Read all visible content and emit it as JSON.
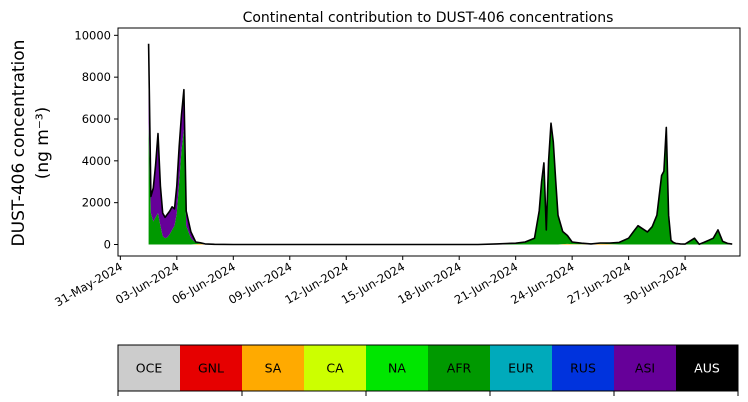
{
  "chart_data": {
    "type": "area",
    "stacked": true,
    "title": "Continental contribution to DUST-406 concentrations",
    "ylabel": "DUST-406 concentration",
    "ylabel_unit": "(ng m⁻³)",
    "xlabel": "",
    "xlim": [
      "2024-05-30T21:00",
      "2024-07-02T22:00"
    ],
    "ylim": [
      -550,
      10350
    ],
    "yticks": [
      0,
      2000,
      4000,
      6000,
      8000,
      10000
    ],
    "yticklabels": [
      "0",
      "2000",
      "4000",
      "6000",
      "8000",
      "10000"
    ],
    "xticks": [
      "2024-05-31",
      "2024-06-03",
      "2024-06-06",
      "2024-06-09",
      "2024-06-12",
      "2024-06-15",
      "2024-06-18",
      "2024-06-21",
      "2024-06-24",
      "2024-06-27",
      "2024-06-30"
    ],
    "xticklabels": [
      "31-May-2024",
      "03-Jun-2024",
      "06-Jun-2024",
      "09-Jun-2024",
      "12-Jun-2024",
      "15-Jun-2024",
      "18-Jun-2024",
      "21-Jun-2024",
      "24-Jun-2024",
      "27-Jun-2024",
      "30-Jun-2024"
    ],
    "grid": false,
    "x": [
      "2024-06-01T12:00",
      "2024-06-01T15:00",
      "2024-06-01T18:00",
      "2024-06-01T21:00",
      "2024-06-02T00:00",
      "2024-06-02T03:00",
      "2024-06-02T06:00",
      "2024-06-02T09:00",
      "2024-06-02T12:00",
      "2024-06-02T15:00",
      "2024-06-02T18:00",
      "2024-06-02T21:00",
      "2024-06-03T00:00",
      "2024-06-03T03:00",
      "2024-06-03T06:00",
      "2024-06-03T09:00",
      "2024-06-03T12:00",
      "2024-06-03T18:00",
      "2024-06-04T00:00",
      "2024-06-04T06:00",
      "2024-06-04T12:00",
      "2024-06-05T00:00",
      "2024-06-06T00:00",
      "2024-06-08T00:00",
      "2024-06-11T00:00",
      "2024-06-14T00:00",
      "2024-06-17T00:00",
      "2024-06-19T00:00",
      "2024-06-20T00:00",
      "2024-06-21T00:00",
      "2024-06-21T12:00",
      "2024-06-22T00:00",
      "2024-06-22T06:00",
      "2024-06-22T09:00",
      "2024-06-22T12:00",
      "2024-06-22T15:00",
      "2024-06-22T18:00",
      "2024-06-22T21:00",
      "2024-06-23T00:00",
      "2024-06-23T03:00",
      "2024-06-23T06:00",
      "2024-06-23T12:00",
      "2024-06-23T18:00",
      "2024-06-24T00:00",
      "2024-06-24T12:00",
      "2024-06-25T00:00",
      "2024-06-25T12:00",
      "2024-06-26T00:00",
      "2024-06-26T12:00",
      "2024-06-27T00:00",
      "2024-06-27T06:00",
      "2024-06-27T12:00",
      "2024-06-27T18:00",
      "2024-06-28T00:00",
      "2024-06-28T06:00",
      "2024-06-28T12:00",
      "2024-06-28T18:00",
      "2024-06-28T21:00",
      "2024-06-29T00:00",
      "2024-06-29T03:00",
      "2024-06-29T06:00",
      "2024-06-29T09:00",
      "2024-06-29T12:00",
      "2024-06-29T18:00",
      "2024-06-30T00:00",
      "2024-06-30T12:00",
      "2024-06-30T18:00",
      "2024-07-01T00:00",
      "2024-07-01T06:00",
      "2024-07-01T12:00",
      "2024-07-01T18:00",
      "2024-07-02T00:00",
      "2024-07-02T06:00",
      "2024-07-02T12:00"
    ],
    "series": [
      {
        "name": "OCE",
        "color": "#cccccc",
        "values": [
          0,
          0,
          0,
          0,
          0,
          0,
          0,
          0,
          0,
          0,
          0,
          0,
          0,
          0,
          0,
          0,
          0,
          0,
          0,
          0,
          0,
          0,
          0,
          0,
          0,
          0,
          0,
          0,
          0,
          0,
          0,
          0,
          0,
          0,
          0,
          0,
          0,
          0,
          0,
          0,
          0,
          0,
          0,
          0,
          0,
          0,
          0,
          0,
          0,
          0,
          0,
          0,
          0,
          0,
          0,
          0,
          0,
          0,
          0,
          0,
          0,
          0,
          0,
          0,
          0,
          0,
          0,
          0,
          0,
          0,
          0,
          0,
          0,
          0
        ]
      },
      {
        "name": "GNL",
        "color": "#e60000",
        "values": [
          0,
          0,
          0,
          0,
          0,
          0,
          0,
          0,
          0,
          0,
          0,
          0,
          0,
          0,
          0,
          0,
          0,
          0,
          0,
          0,
          0,
          0,
          0,
          0,
          0,
          0,
          0,
          0,
          0,
          0,
          0,
          0,
          0,
          0,
          0,
          0,
          0,
          0,
          0,
          0,
          0,
          0,
          0,
          0,
          0,
          0,
          0,
          0,
          0,
          0,
          0,
          0,
          0,
          0,
          0,
          0,
          0,
          0,
          0,
          0,
          0,
          0,
          0,
          0,
          0,
          0,
          0,
          0,
          0,
          0,
          0,
          0,
          0,
          0
        ]
      },
      {
        "name": "SA",
        "color": "#ffaa00",
        "values": [
          0,
          0,
          0,
          0,
          0,
          0,
          0,
          0,
          0,
          0,
          0,
          0,
          0,
          0,
          0,
          0,
          0,
          0,
          20,
          40,
          20,
          10,
          0,
          0,
          0,
          0,
          0,
          0,
          0,
          0,
          0,
          0,
          0,
          0,
          0,
          0,
          0,
          0,
          0,
          0,
          0,
          20,
          30,
          20,
          10,
          30,
          40,
          20,
          0,
          0,
          0,
          0,
          0,
          0,
          0,
          0,
          0,
          0,
          0,
          0,
          0,
          0,
          0,
          0,
          0,
          0,
          0,
          0,
          0,
          0,
          0,
          0,
          0,
          0
        ]
      },
      {
        "name": "CA",
        "color": "#ccff00",
        "values": [
          0,
          0,
          0,
          0,
          0,
          0,
          0,
          0,
          0,
          0,
          0,
          0,
          0,
          0,
          0,
          0,
          0,
          0,
          0,
          0,
          0,
          0,
          0,
          0,
          0,
          0,
          0,
          0,
          0,
          0,
          0,
          0,
          0,
          0,
          0,
          0,
          0,
          0,
          0,
          0,
          0,
          0,
          0,
          0,
          0,
          0,
          0,
          0,
          0,
          0,
          0,
          0,
          0,
          0,
          0,
          0,
          0,
          0,
          0,
          0,
          0,
          0,
          0,
          0,
          0,
          0,
          0,
          0,
          0,
          0,
          0,
          0,
          0,
          0
        ]
      },
      {
        "name": "NA",
        "color": "#00e600",
        "values": [
          0,
          0,
          0,
          0,
          0,
          0,
          0,
          0,
          0,
          0,
          0,
          0,
          0,
          0,
          0,
          0,
          0,
          0,
          0,
          0,
          0,
          0,
          0,
          0,
          0,
          0,
          0,
          0,
          0,
          0,
          0,
          0,
          0,
          0,
          0,
          0,
          0,
          0,
          0,
          0,
          0,
          0,
          0,
          0,
          0,
          0,
          0,
          0,
          0,
          0,
          0,
          0,
          0,
          0,
          0,
          0,
          0,
          0,
          0,
          0,
          0,
          0,
          0,
          0,
          0,
          0,
          0,
          0,
          0,
          0,
          0,
          0,
          0,
          0
        ]
      },
      {
        "name": "AFR",
        "color": "#009900",
        "values": [
          5800,
          1500,
          1100,
          1300,
          1500,
          900,
          400,
          300,
          350,
          500,
          700,
          900,
          1500,
          3000,
          4500,
          5500,
          900,
          300,
          60,
          20,
          0,
          0,
          0,
          0,
          0,
          0,
          0,
          0,
          30,
          60,
          120,
          300,
          1500,
          2800,
          3600,
          700,
          3700,
          5600,
          4800,
          3000,
          1400,
          600,
          400,
          100,
          50,
          0,
          30,
          50,
          100,
          300,
          600,
          900,
          750,
          600,
          850,
          1400,
          3300,
          3500,
          5600,
          1400,
          200,
          100,
          50,
          30,
          20,
          300,
          10,
          100,
          200,
          300,
          700,
          150,
          50,
          20
        ]
      },
      {
        "name": "EUR",
        "color": "#00aabb",
        "values": [
          0,
          0,
          0,
          0,
          0,
          0,
          0,
          0,
          0,
          0,
          0,
          0,
          0,
          0,
          0,
          0,
          0,
          0,
          0,
          0,
          0,
          0,
          0,
          0,
          0,
          0,
          0,
          0,
          0,
          0,
          0,
          0,
          0,
          0,
          0,
          0,
          0,
          0,
          0,
          0,
          0,
          0,
          0,
          0,
          0,
          0,
          0,
          0,
          0,
          0,
          0,
          0,
          0,
          0,
          0,
          0,
          0,
          0,
          0,
          0,
          0,
          0,
          0,
          0,
          0,
          0,
          0,
          0,
          0,
          0,
          0,
          0,
          0,
          0
        ]
      },
      {
        "name": "RUS",
        "color": "#0033dd",
        "values": [
          0,
          0,
          0,
          0,
          0,
          0,
          0,
          0,
          0,
          0,
          0,
          0,
          0,
          0,
          0,
          0,
          0,
          0,
          0,
          0,
          0,
          0,
          0,
          0,
          0,
          0,
          0,
          0,
          0,
          0,
          0,
          0,
          0,
          0,
          0,
          0,
          0,
          0,
          0,
          0,
          0,
          0,
          0,
          0,
          0,
          0,
          0,
          0,
          0,
          0,
          0,
          0,
          0,
          0,
          0,
          0,
          0,
          0,
          0,
          0,
          0,
          0,
          0,
          0,
          0,
          0,
          0,
          0,
          0,
          0,
          0,
          0,
          0,
          0
        ]
      },
      {
        "name": "ASI",
        "color": "#660099",
        "values": [
          3800,
          800,
          1600,
          2500,
          3800,
          1900,
          1100,
          1000,
          1100,
          1100,
          1100,
          800,
          1300,
          1700,
          1700,
          1900,
          700,
          300,
          40,
          20,
          10,
          0,
          0,
          0,
          0,
          0,
          0,
          0,
          0,
          0,
          0,
          0,
          100,
          200,
          300,
          0,
          300,
          200,
          100,
          50,
          0,
          0,
          0,
          0,
          0,
          0,
          0,
          0,
          0,
          0,
          0,
          0,
          0,
          0,
          0,
          0,
          0,
          0,
          0,
          0,
          0,
          0,
          0,
          0,
          0,
          0,
          0,
          0,
          0,
          0,
          0,
          0,
          0,
          0
        ]
      },
      {
        "name": "AUS",
        "color": "#000000",
        "values": [
          0,
          0,
          0,
          0,
          0,
          0,
          0,
          0,
          0,
          0,
          0,
          0,
          0,
          0,
          0,
          0,
          0,
          0,
          0,
          0,
          0,
          0,
          0,
          0,
          0,
          0,
          0,
          0,
          0,
          0,
          0,
          0,
          0,
          0,
          0,
          0,
          0,
          0,
          0,
          0,
          0,
          0,
          0,
          0,
          0,
          0,
          0,
          0,
          0,
          0,
          0,
          0,
          0,
          0,
          0,
          0,
          0,
          0,
          0,
          0,
          0,
          0,
          0,
          0,
          0,
          0,
          0,
          0,
          0,
          0,
          0,
          0,
          0,
          0
        ]
      }
    ],
    "legend": {
      "placement": "bottom",
      "items": [
        {
          "label": "OCE",
          "color": "#cccccc",
          "text_color": "#000000"
        },
        {
          "label": "GNL",
          "color": "#e60000",
          "text_color": "#000000"
        },
        {
          "label": "SA",
          "color": "#ffaa00",
          "text_color": "#000000"
        },
        {
          "label": "CA",
          "color": "#ccff00",
          "text_color": "#000000"
        },
        {
          "label": "NA",
          "color": "#00e600",
          "text_color": "#000000"
        },
        {
          "label": "AFR",
          "color": "#009900",
          "text_color": "#000000"
        },
        {
          "label": "EUR",
          "color": "#00aabb",
          "text_color": "#000000"
        },
        {
          "label": "RUS",
          "color": "#0033dd",
          "text_color": "#000000"
        },
        {
          "label": "ASI",
          "color": "#660099",
          "text_color": "#000000"
        },
        {
          "label": "AUS",
          "color": "#000000",
          "text_color": "#ffffff"
        }
      ]
    }
  }
}
